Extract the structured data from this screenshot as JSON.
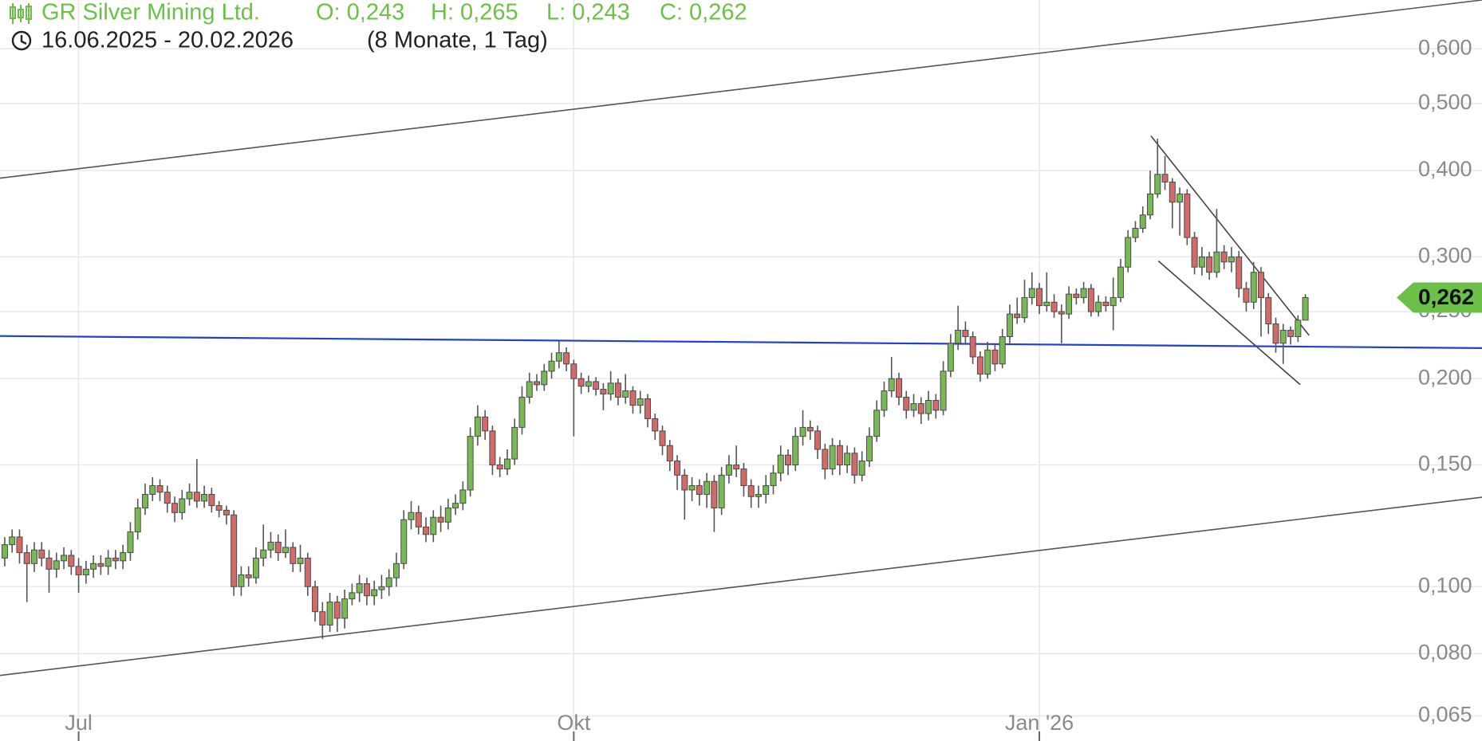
{
  "chart_data": {
    "type": "candlestick",
    "title": "GR Silver Mining Ltd.",
    "ohlc_labels": [
      "O: 0,243",
      "H: 0,265",
      "L: 0,243",
      "C: 0,262"
    ],
    "subtitle": "16.06.2025 - 20.02.2026",
    "period": "(8 Monate, 1 Tag)",
    "log": true,
    "grid": true,
    "up_color": "#78b956",
    "down_color": "#d26a6a",
    "xlim": [
      -0.64,
      199.9
    ],
    "xticks": [
      {
        "value": 10,
        "label": "Jul"
      },
      {
        "value": 77,
        "label": "Okt"
      },
      {
        "value": 140,
        "label": "Jan '26"
      }
    ],
    "ylim": [
      0.0598,
      0.706
    ],
    "yticks": [
      {
        "value": 0.6,
        "label": "0,600"
      },
      {
        "value": 0.5,
        "label": "0,500"
      },
      {
        "value": 0.4,
        "label": "0,400"
      },
      {
        "value": 0.3,
        "label": "0,300"
      },
      {
        "value": 0.25,
        "label": "0,250"
      },
      {
        "value": 0.2,
        "label": "0,200"
      },
      {
        "value": 0.15,
        "label": "0,150"
      },
      {
        "value": 0.1,
        "label": "0,100"
      },
      {
        "value": 0.08,
        "label": "0,080"
      },
      {
        "value": 0.065,
        "label": "0,065"
      }
    ],
    "last_price": {
      "value": 0.262,
      "label": "0,262",
      "color": "#6cc04a"
    },
    "open": [
      0.11,
      0.115,
      0.118,
      0.112,
      0.108,
      0.113,
      0.11,
      0.106,
      0.109,
      0.111,
      0.107,
      0.104,
      0.106,
      0.108,
      0.107,
      0.11,
      0.109,
      0.112,
      0.12,
      0.13,
      0.136,
      0.14,
      0.137,
      0.132,
      0.128,
      0.134,
      0.137,
      0.133,
      0.136,
      0.131,
      0.129,
      0.127,
      0.1,
      0.104,
      0.103,
      0.11,
      0.113,
      0.116,
      0.112,
      0.114,
      0.108,
      0.11,
      0.1,
      0.092,
      0.088,
      0.095,
      0.09,
      0.096,
      0.098,
      0.101,
      0.097,
      0.099,
      0.1,
      0.103,
      0.108,
      0.125,
      0.128,
      0.122,
      0.119,
      0.126,
      0.124,
      0.13,
      0.132,
      0.138,
      0.165,
      0.176,
      0.168,
      0.15,
      0.148,
      0.153,
      0.17,
      0.188,
      0.198,
      0.196,
      0.205,
      0.212,
      0.218,
      0.21,
      0.2,
      0.195,
      0.198,
      0.193,
      0.19,
      0.197,
      0.188,
      0.192,
      0.183,
      0.187,
      0.175,
      0.168,
      0.16,
      0.152,
      0.145,
      0.138,
      0.14,
      0.136,
      0.142,
      0.13,
      0.145,
      0.15,
      0.148,
      0.14,
      0.135,
      0.136,
      0.14,
      0.146,
      0.155,
      0.15,
      0.165,
      0.17,
      0.168,
      0.158,
      0.148,
      0.16,
      0.15,
      0.156,
      0.145,
      0.152,
      0.165,
      0.18,
      0.192,
      0.2,
      0.188,
      0.18,
      0.184,
      0.178,
      0.186,
      0.18,
      0.205,
      0.225,
      0.235,
      0.23,
      0.215,
      0.203,
      0.22,
      0.21,
      0.23,
      0.248,
      0.245,
      0.262,
      0.27,
      0.255,
      0.258,
      0.25,
      0.248,
      0.265,
      0.262,
      0.27,
      0.25,
      0.258,
      0.255,
      0.262,
      0.29,
      0.32,
      0.33,
      0.345,
      0.37,
      0.395,
      0.385,
      0.36,
      0.37,
      0.32,
      0.29,
      0.3,
      0.285,
      0.305,
      0.295,
      0.3,
      0.27,
      0.258,
      0.285,
      0.262,
      0.24,
      0.225,
      0.235,
      0.23,
      0.243
    ],
    "high": [
      0.118,
      0.121,
      0.121,
      0.115,
      0.116,
      0.116,
      0.113,
      0.112,
      0.114,
      0.113,
      0.11,
      0.109,
      0.111,
      0.111,
      0.113,
      0.113,
      0.115,
      0.124,
      0.134,
      0.141,
      0.144,
      0.143,
      0.14,
      0.135,
      0.138,
      0.141,
      0.153,
      0.14,
      0.139,
      0.133,
      0.131,
      0.129,
      0.107,
      0.107,
      0.114,
      0.123,
      0.12,
      0.119,
      0.121,
      0.116,
      0.115,
      0.112,
      0.102,
      0.095,
      0.098,
      0.097,
      0.099,
      0.101,
      0.104,
      0.103,
      0.102,
      0.104,
      0.106,
      0.112,
      0.129,
      0.133,
      0.131,
      0.126,
      0.129,
      0.131,
      0.134,
      0.136,
      0.142,
      0.17,
      0.183,
      0.18,
      0.171,
      0.154,
      0.158,
      0.175,
      0.195,
      0.204,
      0.203,
      0.21,
      0.218,
      0.227,
      0.222,
      0.213,
      0.204,
      0.202,
      0.201,
      0.197,
      0.205,
      0.2,
      0.203,
      0.195,
      0.192,
      0.19,
      0.178,
      0.171,
      0.163,
      0.155,
      0.148,
      0.144,
      0.143,
      0.146,
      0.145,
      0.149,
      0.155,
      0.16,
      0.151,
      0.143,
      0.14,
      0.145,
      0.15,
      0.16,
      0.158,
      0.17,
      0.18,
      0.174,
      0.171,
      0.161,
      0.164,
      0.163,
      0.16,
      0.159,
      0.157,
      0.17,
      0.186,
      0.198,
      0.215,
      0.204,
      0.192,
      0.19,
      0.188,
      0.192,
      0.19,
      0.212,
      0.232,
      0.255,
      0.242,
      0.234,
      0.219,
      0.226,
      0.224,
      0.236,
      0.256,
      0.262,
      0.278,
      0.285,
      0.275,
      0.285,
      0.265,
      0.256,
      0.272,
      0.27,
      0.276,
      0.274,
      0.264,
      0.263,
      0.28,
      0.298,
      0.328,
      0.338,
      0.355,
      0.4,
      0.445,
      0.42,
      0.39,
      0.378,
      0.376,
      0.326,
      0.31,
      0.305,
      0.352,
      0.312,
      0.31,
      0.306,
      0.276,
      0.295,
      0.29,
      0.266,
      0.245,
      0.24,
      0.238,
      0.247,
      0.265
    ],
    "low": [
      0.107,
      0.112,
      0.108,
      0.095,
      0.105,
      0.107,
      0.098,
      0.103,
      0.106,
      0.104,
      0.098,
      0.101,
      0.103,
      0.104,
      0.104,
      0.106,
      0.106,
      0.109,
      0.117,
      0.127,
      0.133,
      0.133,
      0.128,
      0.124,
      0.125,
      0.131,
      0.13,
      0.13,
      0.128,
      0.126,
      0.123,
      0.097,
      0.097,
      0.1,
      0.101,
      0.107,
      0.11,
      0.109,
      0.11,
      0.105,
      0.105,
      0.097,
      0.089,
      0.084,
      0.086,
      0.086,
      0.087,
      0.094,
      0.095,
      0.094,
      0.094,
      0.096,
      0.097,
      0.1,
      0.106,
      0.121,
      0.119,
      0.116,
      0.116,
      0.12,
      0.121,
      0.127,
      0.129,
      0.135,
      0.16,
      0.163,
      0.145,
      0.144,
      0.145,
      0.15,
      0.166,
      0.184,
      0.192,
      0.192,
      0.2,
      0.207,
      0.205,
      0.165,
      0.19,
      0.191,
      0.189,
      0.18,
      0.186,
      0.183,
      0.184,
      0.178,
      0.178,
      0.17,
      0.163,
      0.155,
      0.147,
      0.138,
      0.125,
      0.133,
      0.131,
      0.13,
      0.12,
      0.127,
      0.141,
      0.144,
      0.135,
      0.13,
      0.13,
      0.132,
      0.136,
      0.142,
      0.145,
      0.147,
      0.16,
      0.163,
      0.153,
      0.143,
      0.145,
      0.145,
      0.146,
      0.141,
      0.142,
      0.149,
      0.162,
      0.176,
      0.188,
      0.183,
      0.175,
      0.176,
      0.172,
      0.174,
      0.175,
      0.177,
      0.201,
      0.22,
      0.225,
      0.21,
      0.198,
      0.2,
      0.205,
      0.207,
      0.225,
      0.24,
      0.241,
      0.256,
      0.248,
      0.25,
      0.245,
      0.225,
      0.244,
      0.256,
      0.257,
      0.246,
      0.246,
      0.25,
      0.235,
      0.258,
      0.285,
      0.315,
      0.325,
      0.34,
      0.365,
      0.375,
      0.33,
      0.322,
      0.312,
      0.283,
      0.282,
      0.278,
      0.28,
      0.288,
      0.285,
      0.262,
      0.25,
      0.252,
      0.23,
      0.232,
      0.218,
      0.21,
      0.224,
      0.226,
      0.243
    ],
    "close": [
      0.115,
      0.118,
      0.112,
      0.108,
      0.113,
      0.11,
      0.106,
      0.109,
      0.111,
      0.107,
      0.104,
      0.106,
      0.108,
      0.107,
      0.11,
      0.109,
      0.112,
      0.12,
      0.13,
      0.136,
      0.14,
      0.137,
      0.132,
      0.128,
      0.134,
      0.137,
      0.133,
      0.136,
      0.131,
      0.129,
      0.127,
      0.1,
      0.104,
      0.103,
      0.11,
      0.113,
      0.116,
      0.112,
      0.114,
      0.108,
      0.11,
      0.1,
      0.092,
      0.088,
      0.095,
      0.09,
      0.096,
      0.098,
      0.101,
      0.097,
      0.099,
      0.1,
      0.103,
      0.108,
      0.125,
      0.128,
      0.122,
      0.119,
      0.126,
      0.124,
      0.13,
      0.132,
      0.138,
      0.165,
      0.176,
      0.168,
      0.15,
      0.148,
      0.153,
      0.17,
      0.188,
      0.198,
      0.196,
      0.205,
      0.212,
      0.218,
      0.21,
      0.2,
      0.195,
      0.198,
      0.193,
      0.19,
      0.197,
      0.188,
      0.192,
      0.183,
      0.187,
      0.175,
      0.168,
      0.16,
      0.152,
      0.145,
      0.138,
      0.14,
      0.136,
      0.142,
      0.13,
      0.145,
      0.15,
      0.148,
      0.14,
      0.135,
      0.136,
      0.14,
      0.146,
      0.155,
      0.15,
      0.165,
      0.17,
      0.168,
      0.158,
      0.148,
      0.16,
      0.15,
      0.156,
      0.145,
      0.152,
      0.165,
      0.18,
      0.192,
      0.2,
      0.188,
      0.18,
      0.184,
      0.178,
      0.186,
      0.18,
      0.205,
      0.225,
      0.235,
      0.23,
      0.215,
      0.203,
      0.22,
      0.21,
      0.23,
      0.248,
      0.245,
      0.262,
      0.27,
      0.255,
      0.258,
      0.25,
      0.248,
      0.265,
      0.262,
      0.27,
      0.25,
      0.258,
      0.255,
      0.262,
      0.29,
      0.32,
      0.33,
      0.345,
      0.37,
      0.395,
      0.385,
      0.36,
      0.37,
      0.32,
      0.29,
      0.3,
      0.285,
      0.305,
      0.295,
      0.3,
      0.27,
      0.258,
      0.285,
      0.262,
      0.24,
      0.225,
      0.235,
      0.23,
      0.243,
      0.262
    ],
    "trendlines": [
      {
        "color": "#555555",
        "x": [
          -0.64,
          199.9
        ],
        "y": [
          0.39,
          0.706
        ]
      },
      {
        "color": "#555555",
        "x": [
          -0.64,
          199.9
        ],
        "y": [
          0.0744,
          0.1347
        ]
      },
      {
        "color": "#1f3fd8",
        "x": [
          -0.64,
          199.9
        ],
        "y": [
          0.2305,
          0.2214
        ]
      },
      {
        "color": "#444444",
        "x": [
          155.1,
          176.5
        ],
        "y": [
          0.449,
          0.231
        ]
      },
      {
        "color": "#444444",
        "x": [
          156.1,
          175.3
        ],
        "y": [
          0.296,
          0.196
        ]
      }
    ]
  }
}
